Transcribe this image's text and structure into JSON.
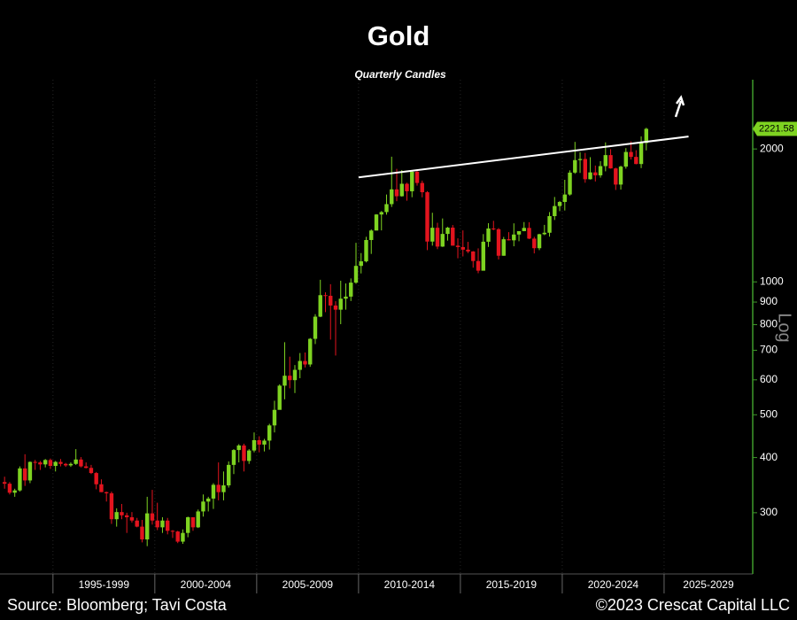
{
  "chart_data": {
    "type": "candlestick",
    "title": "Gold",
    "subtitle": "Quarterly Candles",
    "log_scale": true,
    "scale_label": "Log",
    "grid": true,
    "up_color": "#7ed321",
    "down_color": "#e3141e",
    "axis_color": "#3f9a2a",
    "xlim": [
      1992.4,
      2029.35
    ],
    "ylim": [
      218,
      2870
    ],
    "xticks": [
      1995,
      2000,
      2005,
      2010,
      2015,
      2020,
      2025,
      2030
    ],
    "x_period_labels": [
      "1995-1999",
      "2000-2004",
      "2005-2009",
      "2010-2014",
      "2015-2019",
      "2020-2024",
      "2025-2029"
    ],
    "yticks": [
      300,
      400,
      500,
      600,
      700,
      800,
      900,
      1000,
      2000
    ],
    "x": [
      1992.625,
      1992.875,
      1993.125,
      1993.375,
      1993.625,
      1993.875,
      1994.125,
      1994.375,
      1994.625,
      1994.875,
      1995.125,
      1995.375,
      1995.625,
      1995.875,
      1996.125,
      1996.375,
      1996.625,
      1996.875,
      1997.125,
      1997.375,
      1997.625,
      1997.875,
      1998.125,
      1998.375,
      1998.625,
      1998.875,
      1999.125,
      1999.375,
      1999.625,
      1999.875,
      2000.125,
      2000.375,
      2000.625,
      2000.875,
      2001.125,
      2001.375,
      2001.625,
      2001.875,
      2002.125,
      2002.375,
      2002.625,
      2002.875,
      2003.125,
      2003.375,
      2003.625,
      2003.875,
      2004.125,
      2004.375,
      2004.625,
      2004.875,
      2005.125,
      2005.375,
      2005.625,
      2005.875,
      2006.125,
      2006.375,
      2006.625,
      2006.875,
      2007.125,
      2007.375,
      2007.625,
      2007.875,
      2008.125,
      2008.375,
      2008.625,
      2008.875,
      2009.125,
      2009.375,
      2009.625,
      2009.875,
      2010.125,
      2010.375,
      2010.625,
      2010.875,
      2011.125,
      2011.375,
      2011.625,
      2011.875,
      2012.125,
      2012.375,
      2012.625,
      2012.875,
      2013.125,
      2013.375,
      2013.625,
      2013.875,
      2014.125,
      2014.375,
      2014.625,
      2014.875,
      2015.125,
      2015.375,
      2015.625,
      2015.875,
      2016.125,
      2016.375,
      2016.625,
      2016.875,
      2017.125,
      2017.375,
      2017.625,
      2017.875,
      2018.125,
      2018.375,
      2018.625,
      2018.875,
      2019.125,
      2019.375,
      2019.625,
      2019.875,
      2020.125,
      2020.375,
      2020.625,
      2020.875,
      2021.125,
      2021.375,
      2021.625,
      2021.875,
      2022.125,
      2022.375,
      2022.625,
      2022.875,
      2023.125,
      2023.375,
      2023.625,
      2023.875,
      2024.125
    ],
    "open": [
      352,
      349,
      333,
      337,
      378,
      355,
      391,
      390,
      386,
      395,
      383,
      391,
      387,
      384,
      387,
      396,
      382,
      379,
      369,
      348,
      334,
      332,
      290,
      301,
      296,
      293,
      288,
      279,
      261,
      299,
      288,
      278,
      288,
      273,
      272,
      258,
      270,
      293,
      278,
      302,
      318,
      323,
      347,
      334,
      346,
      385,
      416,
      426,
      393,
      415,
      438,
      428,
      437,
      473,
      513,
      582,
      613,
      599,
      632,
      662,
      650,
      743,
      834,
      933,
      930,
      884,
      865,
      916,
      926,
      996,
      1087,
      1113,
      1244,
      1307,
      1421,
      1439,
      1500,
      1620,
      1563,
      1668,
      1604,
      1776,
      1675,
      1596,
      1234,
      1326,
      1202,
      1284,
      1327,
      1208,
      1199,
      1183,
      1172,
      1115,
      1060,
      1233,
      1321,
      1316,
      1146,
      1249,
      1242,
      1280,
      1303,
      1325,
      1253,
      1192,
      1282,
      1292,
      1409,
      1485,
      1517,
      1577,
      1768,
      1887,
      1898,
      1708,
      1770,
      1743,
      1829,
      1937,
      1807,
      1661,
      1824,
      1969,
      1919,
      1849,
      2063
    ],
    "high": [
      362,
      352,
      340,
      382,
      407,
      392,
      395,
      393,
      397,
      398,
      393,
      397,
      389,
      390,
      418,
      401,
      390,
      385,
      371,
      357,
      335,
      335,
      307,
      314,
      300,
      301,
      292,
      289,
      326,
      338,
      316,
      293,
      292,
      274,
      273,
      275,
      294,
      293,
      305,
      330,
      326,
      350,
      390,
      372,
      392,
      418,
      429,
      430,
      418,
      456,
      447,
      441,
      477,
      538,
      586,
      730,
      677,
      648,
      690,
      692,
      746,
      845,
      1011,
      947,
      988,
      904,
      1006,
      992,
      1018,
      1226,
      1162,
      1265,
      1315,
      1424,
      1447,
      1577,
      1921,
      1803,
      1792,
      1677,
      1790,
      1796,
      1696,
      1605,
      1434,
      1361,
      1392,
      1332,
      1345,
      1255,
      1308,
      1232,
      1174,
      1191,
      1283,
      1358,
      1375,
      1324,
      1264,
      1296,
      1357,
      1297,
      1366,
      1365,
      1265,
      1285,
      1346,
      1439,
      1557,
      1525,
      1703,
      1789,
      2075,
      1966,
      1959,
      1916,
      1834,
      1877,
      2070,
      1998,
      1814,
      1833,
      2009,
      2081,
      1987,
      2135,
      2234
    ],
    "low": [
      340,
      330,
      326,
      335,
      345,
      350,
      375,
      375,
      380,
      377,
      372,
      382,
      381,
      381,
      385,
      380,
      378,
      367,
      339,
      334,
      318,
      283,
      279,
      290,
      270,
      285,
      278,
      257,
      252,
      282,
      274,
      270,
      268,
      263,
      256,
      255,
      264,
      273,
      277,
      294,
      302,
      306,
      320,
      320,
      342,
      367,
      390,
      372,
      387,
      411,
      411,
      413,
      417,
      456,
      514,
      542,
      574,
      560,
      605,
      640,
      642,
      723,
      832,
      854,
      740,
      681,
      802,
      865,
      905,
      990,
      1045,
      1107,
      1157,
      1308,
      1308,
      1420,
      1478,
      1523,
      1560,
      1527,
      1555,
      1652,
      1554,
      1180,
      1208,
      1186,
      1200,
      1240,
      1208,
      1131,
      1142,
      1162,
      1077,
      1046,
      1061,
      1200,
      1309,
      1124,
      1146,
      1241,
      1204,
      1236,
      1302,
      1250,
      1160,
      1180,
      1276,
      1266,
      1381,
      1446,
      1451,
      1568,
      1757,
      1765,
      1677,
      1705,
      1688,
      1722,
      1780,
      1805,
      1615,
      1618,
      1805,
      1893,
      1846,
      1810,
      1985
    ],
    "close": [
      349,
      333,
      337,
      378,
      355,
      391,
      390,
      386,
      395,
      383,
      391,
      387,
      384,
      387,
      396,
      382,
      379,
      369,
      348,
      334,
      332,
      290,
      301,
      296,
      293,
      288,
      279,
      261,
      299,
      288,
      278,
      288,
      273,
      272,
      258,
      270,
      293,
      278,
      302,
      318,
      323,
      347,
      334,
      346,
      385,
      416,
      426,
      393,
      415,
      438,
      428,
      437,
      473,
      513,
      582,
      613,
      599,
      632,
      662,
      650,
      743,
      834,
      933,
      930,
      884,
      865,
      916,
      926,
      996,
      1087,
      1113,
      1244,
      1307,
      1421,
      1439,
      1500,
      1620,
      1563,
      1668,
      1604,
      1776,
      1675,
      1596,
      1234,
      1326,
      1202,
      1284,
      1327,
      1208,
      1199,
      1183,
      1172,
      1115,
      1060,
      1233,
      1321,
      1316,
      1146,
      1249,
      1242,
      1280,
      1303,
      1325,
      1253,
      1192,
      1282,
      1292,
      1409,
      1485,
      1517,
      1577,
      1768,
      1887,
      1898,
      1708,
      1770,
      1743,
      1829,
      1937,
      1807,
      1661,
      1824,
      1969,
      1919,
      1849,
      2063,
      2221.58
    ],
    "trendline": {
      "x": [
        2010.0,
        2026.2
      ],
      "y": [
        1725,
        2134
      ],
      "color": "#ffffff"
    }
  },
  "footer": {
    "source": "Source: Bloomberg; Tavi Costa",
    "copyright": "©2023 Crescat Capital LLC"
  }
}
